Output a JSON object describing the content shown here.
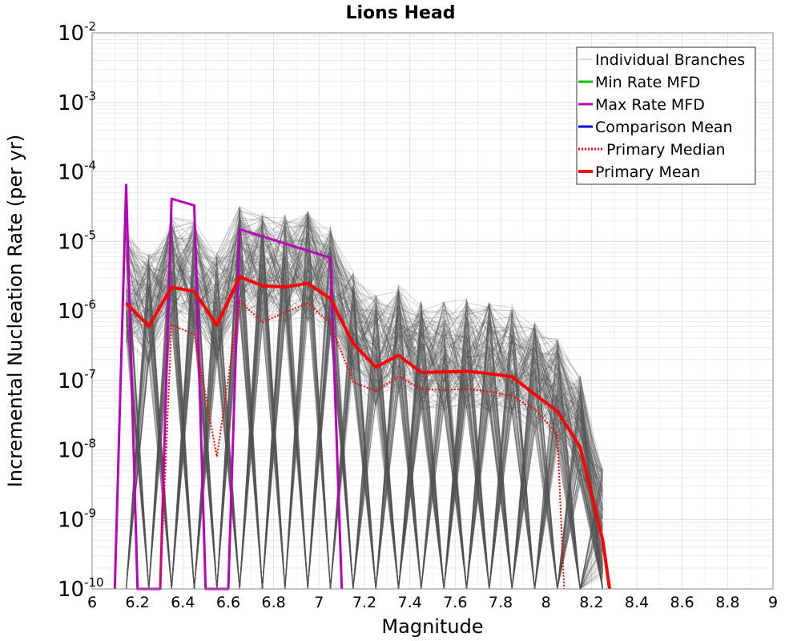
{
  "chart_data": {
    "type": "line",
    "title": "Lions Head",
    "xlabel": "Magnitude",
    "ylabel": "Incremental Nucleation Rate (per yr)",
    "xlim": [
      6,
      9
    ],
    "ylim": [
      1e-10,
      0.01
    ],
    "y_scale": "log",
    "grid": true,
    "legend_position": "top-right",
    "x_ticks": [
      "6",
      "6.2",
      "6.4",
      "6.6",
      "6.8",
      "7",
      "7.2",
      "7.4",
      "7.6",
      "7.8",
      "8",
      "8.2",
      "8.4",
      "8.6",
      "8.8",
      "9"
    ],
    "y_ticks": [
      {
        "base": "10",
        "exp": "-10",
        "value": 1e-10
      },
      {
        "base": "10",
        "exp": "-9",
        "value": 1e-09
      },
      {
        "base": "10",
        "exp": "-8",
        "value": 1e-08
      },
      {
        "base": "10",
        "exp": "-7",
        "value": 1e-07
      },
      {
        "base": "10",
        "exp": "-6",
        "value": 1e-06
      },
      {
        "base": "10",
        "exp": "-5",
        "value": 1e-05
      },
      {
        "base": "10",
        "exp": "-4",
        "value": 0.0001
      },
      {
        "base": "10",
        "exp": "-3",
        "value": 0.001
      },
      {
        "base": "10",
        "exp": "-2",
        "value": 0.01
      }
    ],
    "legend": [
      {
        "name": "Individual Branches",
        "color": "#bbbbbb",
        "style": "solid-thin"
      },
      {
        "name": "Min Rate MFD",
        "color": "#00bb00",
        "style": "solid"
      },
      {
        "name": "Max Rate MFD",
        "color": "#bb00bb",
        "style": "solid"
      },
      {
        "name": "Comparison Mean",
        "color": "#0000cc",
        "style": "solid"
      },
      {
        "name": "Primary Median",
        "color": "#ff0000",
        "style": "dotted"
      },
      {
        "name": "Primary Mean",
        "color": "#ff0000",
        "style": "solid-thick"
      }
    ],
    "series": [
      {
        "name": "Max Rate MFD",
        "color": "#bb00bb",
        "x": [
          6.1,
          6.15,
          6.2,
          6.3,
          6.35,
          6.45,
          6.5,
          6.6,
          6.65,
          7.05,
          7.1
        ],
        "y": [
          1e-10,
          6.5e-05,
          1e-10,
          1e-10,
          4.1e-05,
          3.3e-05,
          1e-10,
          1e-10,
          1.5e-05,
          5.8e-06,
          1e-10
        ]
      },
      {
        "name": "Primary Mean",
        "color": "#ff0000",
        "x": [
          6.15,
          6.25,
          6.35,
          6.45,
          6.55,
          6.65,
          6.75,
          6.85,
          6.95,
          7.05,
          7.15,
          7.25,
          7.35,
          7.45,
          7.55,
          7.65,
          7.75,
          7.85,
          7.95,
          8.05,
          8.15,
          8.25,
          8.28
        ],
        "y": [
          1.3e-06,
          6e-07,
          2.2e-06,
          1.9e-06,
          6.2e-07,
          3.1e-06,
          2.3e-06,
          2.2e-06,
          2.5e-06,
          1.5e-06,
          3.4e-07,
          1.55e-07,
          2.3e-07,
          1.3e-07,
          1.32e-07,
          1.35e-07,
          1.25e-07,
          1.13e-07,
          6.3e-08,
          3.6e-08,
          1.1e-08,
          5e-10,
          1e-10
        ]
      },
      {
        "name": "Primary Median",
        "color": "#ff0000",
        "x": [
          6.3,
          6.35,
          6.45,
          6.55,
          6.65,
          6.75,
          6.85,
          6.95,
          7.05,
          7.15,
          7.25,
          7.35,
          7.45,
          7.55,
          7.65,
          7.75,
          7.85,
          7.95,
          8.05,
          8.08
        ],
        "y": [
          1e-10,
          6.3e-07,
          4.6e-07,
          8e-09,
          1.4e-06,
          6.8e-07,
          9.5e-07,
          1.3e-06,
          6.5e-07,
          9.5e-08,
          7e-08,
          1.15e-07,
          7.5e-08,
          7.3e-08,
          7.5e-08,
          6.9e-08,
          6e-08,
          3.8e-08,
          1.7e-08,
          1e-10
        ]
      }
    ]
  }
}
